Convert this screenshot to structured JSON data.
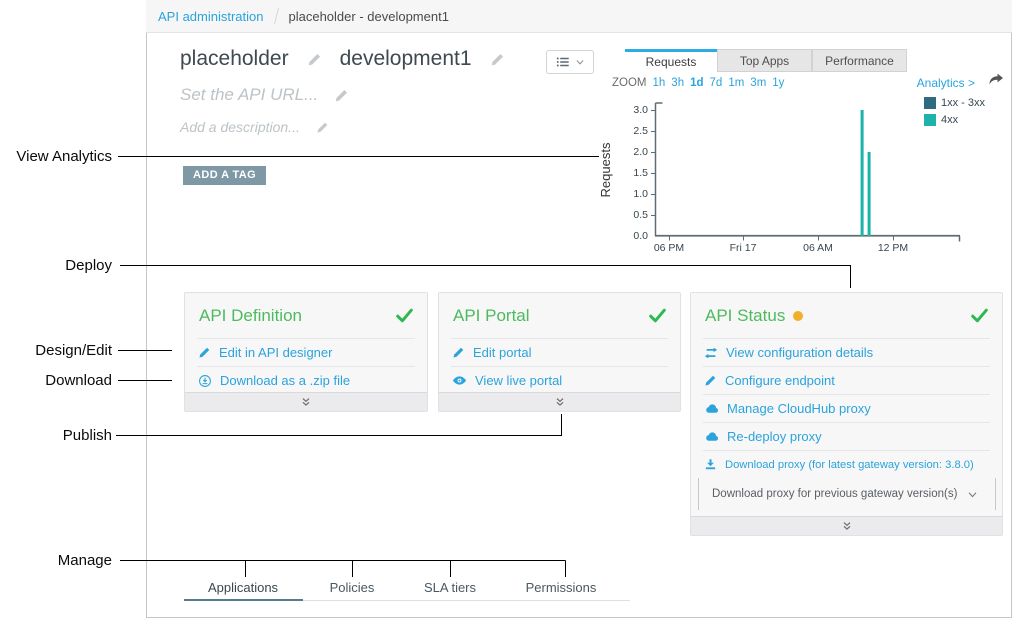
{
  "annotations": [
    {
      "label": "View Analytics"
    },
    {
      "label": "Deploy"
    },
    {
      "label": "Design/Edit"
    },
    {
      "label": "Download"
    },
    {
      "label": "Publish"
    },
    {
      "label": "Manage"
    }
  ],
  "breadcrumb": {
    "root": "API administration",
    "current": "placeholder - development1"
  },
  "header": {
    "api_name": "placeholder",
    "version_name": "development1",
    "url_placeholder": "Set the API URL...",
    "description_placeholder": "Add a description...",
    "add_tag_label": "ADD A TAG"
  },
  "analytics": {
    "tabs": [
      {
        "label": "Requests",
        "active": true
      },
      {
        "label": "Top Apps",
        "active": false
      },
      {
        "label": "Performance",
        "active": false
      }
    ],
    "zoom_label": "ZOOM",
    "zoom_ranges": [
      "1h",
      "3h",
      "1d",
      "7d",
      "1m",
      "3m",
      "1y"
    ],
    "zoom_selected": "1d",
    "analytics_link": "Analytics >"
  },
  "chart_data": {
    "type": "bar",
    "ylabel": "Requests",
    "ylim": [
      0,
      3.0
    ],
    "ytick_labels": [
      "0.0",
      "0.5",
      "1.0",
      "1.5",
      "2.0",
      "2.5",
      "3.0"
    ],
    "xtick_labels": [
      "06 PM",
      "Fri 17",
      "06 AM",
      "12 PM"
    ],
    "x_axis_note": "~24h window, major ticks every 6 hours",
    "grid": false,
    "legend_position": "top-right",
    "series": [
      {
        "name": "1xx - 3xx",
        "color": "#2e6a80",
        "points": []
      },
      {
        "name": "4xx",
        "color": "#1db3ab",
        "points": [
          {
            "x_frac": 0.679,
            "approx_time": "09:45 AM",
            "value": 3
          },
          {
            "x_frac": 0.702,
            "approx_time": "10:30 AM",
            "value": 2
          }
        ]
      }
    ]
  },
  "cards": [
    {
      "title": "API Definition",
      "status": "complete",
      "items": [
        {
          "icon": "pencil-icon",
          "label": "Edit in API designer"
        },
        {
          "icon": "download-circle-icon",
          "label": "Download as a .zip file"
        }
      ]
    },
    {
      "title": "API Portal",
      "status": "complete",
      "items": [
        {
          "icon": "pencil-icon",
          "label": "Edit portal"
        },
        {
          "icon": "eye-icon",
          "label": "View live portal"
        }
      ]
    },
    {
      "title": "API Status",
      "status": "complete",
      "has_pending_dot": true,
      "items": [
        {
          "icon": "transfer-icon",
          "label": "View configuration details"
        },
        {
          "icon": "pencil-icon",
          "label": "Configure endpoint"
        },
        {
          "icon": "cloud-icon",
          "label": "Manage CloudHub proxy"
        },
        {
          "icon": "cloud-icon",
          "label": "Re-deploy proxy"
        },
        {
          "icon": "download-tray-icon",
          "label": "Download proxy (for latest gateway version: 3.8.0)"
        }
      ],
      "dropdown_label": "Download proxy for previous gateway version(s)"
    }
  ],
  "bottom_tabs": [
    {
      "label": "Applications",
      "active": true
    },
    {
      "label": "Policies",
      "active": false
    },
    {
      "label": "SLA tiers",
      "active": false
    },
    {
      "label": "Permissions",
      "active": false
    }
  ],
  "colors": {
    "accent_blue": "#2ba3db",
    "title_green": "#4dba5e",
    "check_green": "#2eb84f",
    "pending_orange": "#f1b02c",
    "bar_teal": "#1db3ab",
    "legend_dark": "#2e6a80",
    "tag_bg": "#7e98a6",
    "tab_active_border": "#2bace2"
  }
}
